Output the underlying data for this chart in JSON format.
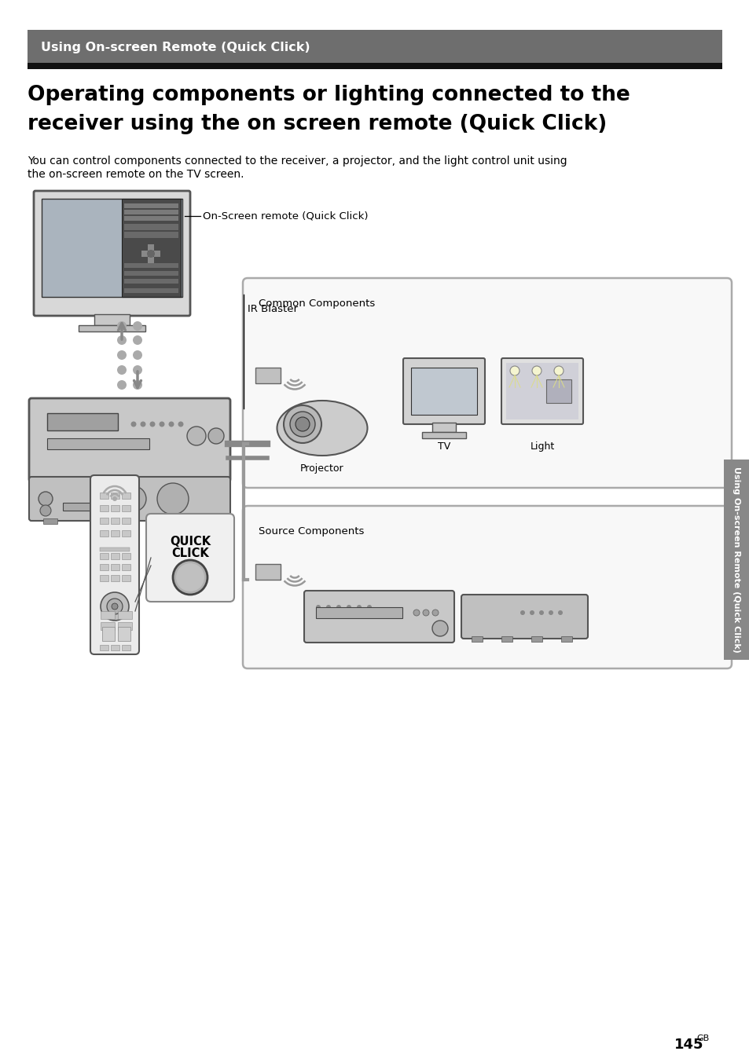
{
  "page_bg": "#ffffff",
  "header_bg": "#6e6e6e",
  "header_text": "Using On-screen Remote (Quick Click)",
  "header_text_color": "#ffffff",
  "black_bar_bg": "#111111",
  "title_line1": "Operating components or lighting connected to the",
  "title_line2": "receiver using the on screen remote (Quick Click)",
  "title_color": "#000000",
  "body_line1": "You can control components connected to the receiver, a projector, and the light control unit using",
  "body_line2": "the on-screen remote on the TV screen.",
  "label_onscreen": "On-Screen remote (Quick Click)",
  "label_ir": "IR Blaster",
  "label_common": "Common Components",
  "label_source": "Source Components",
  "label_projector": "Projector",
  "label_tv": "TV",
  "label_light": "Light",
  "label_quick_1": "QUICK",
  "label_quick_2": "CLICK",
  "sidebar_text": "Using On-screen Remote (Quick Click)",
  "sidebar_bg": "#888888",
  "page_number": "145",
  "page_suffix": "GB"
}
